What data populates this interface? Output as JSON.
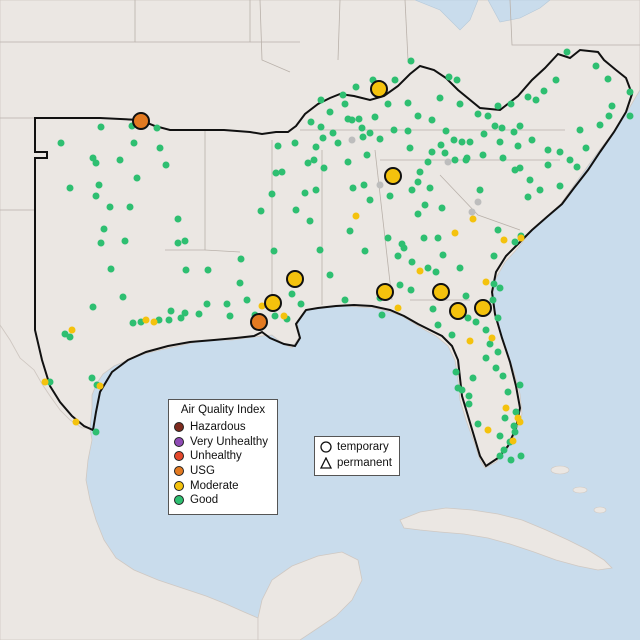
{
  "legend": {
    "title": "Air Quality Index",
    "categories": [
      {
        "label": "Hazardous",
        "color": "#7e2b1e"
      },
      {
        "label": "Very Unhealthy",
        "color": "#8f4bb5"
      },
      {
        "label": "Unhealthy",
        "color": "#e4482c"
      },
      {
        "label": "USG",
        "color": "#e37a21"
      },
      {
        "label": "Moderate",
        "color": "#f4c20d"
      },
      {
        "label": "Good",
        "color": "#2ebf71"
      }
    ]
  },
  "type_legend": {
    "temporary": "temporary",
    "permanent": "permanent"
  },
  "colors": {
    "water": "#c9dcec",
    "land": "#ebe7e3",
    "southeast_boundary": "#111111",
    "no_data": "#bdbdbd"
  }
}
